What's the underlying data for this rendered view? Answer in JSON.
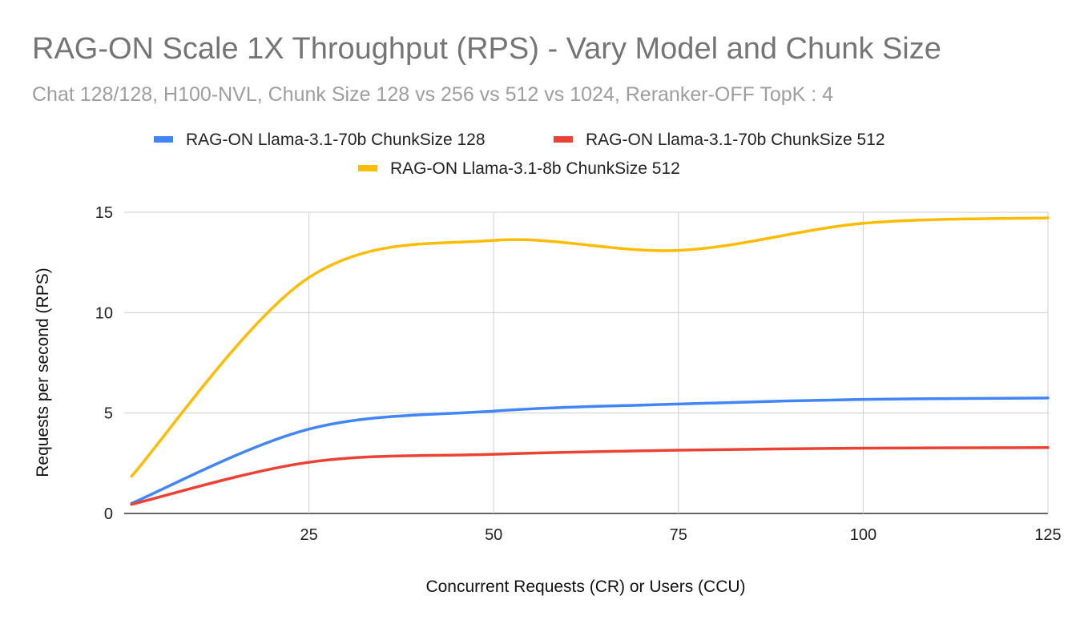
{
  "chart_data": {
    "type": "line",
    "title": "RAG-ON Scale 1X  Throughput (RPS) - Vary Model and Chunk Size",
    "subtitle": "Chat 128/128, H100-NVL, Chunk Size 128 vs 256 vs 512 vs 1024, Reranker-OFF TopK : 4",
    "xlabel": "Concurrent Requests (CR) or Users (CCU)",
    "ylabel": "Requests per second (RPS)",
    "xlim": [
      0,
      125
    ],
    "ylim": [
      0,
      15
    ],
    "xticks": [
      25,
      50,
      75,
      100,
      125
    ],
    "yticks": [
      0,
      5,
      10,
      15
    ],
    "grid": true,
    "legend_position": "top",
    "x": [
      1,
      25,
      50,
      75,
      100,
      125
    ],
    "series": [
      {
        "name": "RAG-ON Llama-3.1-70b ChunkSize 128",
        "color": "#4285f4",
        "values": [
          0.5,
          4.2,
          5.1,
          5.45,
          5.68,
          5.75
        ]
      },
      {
        "name": "RAG-ON Llama-3.1-70b ChunkSize 512",
        "color": "#ea4335",
        "values": [
          0.45,
          2.55,
          2.95,
          3.15,
          3.25,
          3.28
        ]
      },
      {
        "name": "RAG-ON Llama-3.1-8b ChunkSize 512",
        "color": "#fbbc04",
        "values": [
          1.85,
          11.75,
          13.6,
          13.1,
          14.45,
          14.72
        ]
      }
    ]
  }
}
